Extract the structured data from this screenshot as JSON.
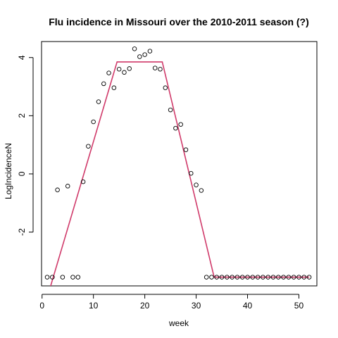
{
  "chart_data": {
    "type": "scatter",
    "title": "Flu incidence in Missouri over the 2010-2011 season (?)",
    "xlabel": "week",
    "ylabel": "LogIncidenceN",
    "xlim": [
      -0.1,
      53.5
    ],
    "ylim": [
      -3.85,
      4.55
    ],
    "xticks": [
      0,
      10,
      20,
      30,
      40,
      50
    ],
    "yticks": [
      -2,
      0,
      2,
      4
    ],
    "grid": false,
    "legend": "none",
    "colors": {
      "points": "#000000",
      "fit_line": "#d03a6a",
      "frame": "#000000"
    },
    "points": {
      "x": [
        1,
        2,
        3,
        4,
        5,
        6,
        7,
        8,
        9,
        10,
        11,
        12,
        13,
        14,
        15,
        16,
        17,
        18,
        19,
        20,
        21,
        22,
        23,
        24,
        25,
        26,
        27,
        28,
        29,
        30,
        31,
        32,
        33,
        34,
        35,
        36,
        37,
        38,
        39,
        40,
        41,
        42,
        43,
        44,
        45,
        46,
        47,
        48,
        49,
        50,
        51,
        52
      ],
      "y": [
        -3.55,
        -3.55,
        -0.55,
        -3.55,
        -0.42,
        -3.55,
        -3.55,
        -0.27,
        0.95,
        1.79,
        2.48,
        3.1,
        3.47,
        2.96,
        3.6,
        3.49,
        3.62,
        4.3,
        4.03,
        4.1,
        4.22,
        3.64,
        3.6,
        2.96,
        2.2,
        1.57,
        1.7,
        0.83,
        0.02,
        -0.38,
        -0.57,
        -3.55,
        -3.55,
        -3.55,
        -3.55,
        -3.55,
        -3.55,
        -3.55,
        -3.55,
        -3.55,
        -3.55,
        -3.55,
        -3.55,
        -3.55,
        -3.55,
        -3.55,
        -3.55,
        -3.55,
        -3.55,
        -3.55,
        -3.55,
        -3.55
      ]
    },
    "fit_line": {
      "x": [
        0.5,
        14.6,
        23.4,
        33.5,
        52
      ],
      "y": [
        -4.55,
        3.85,
        3.85,
        -3.55,
        -3.55
      ]
    }
  }
}
